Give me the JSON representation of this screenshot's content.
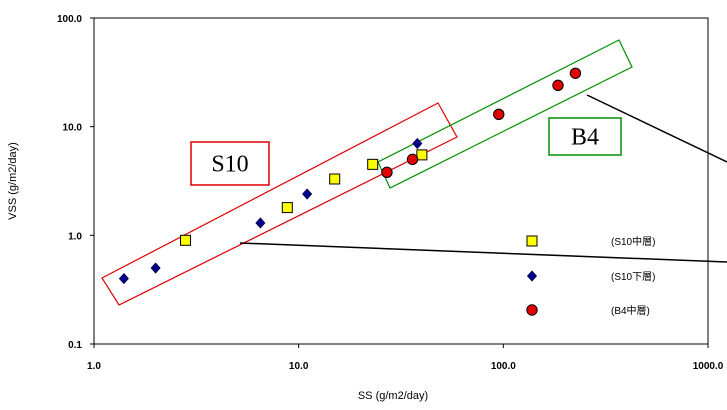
{
  "chart_data": {
    "type": "scatter",
    "xlabel": "SS (g/m2/day)",
    "ylabel": "VSS (g/m2/day)",
    "xscale": "log",
    "yscale": "log",
    "xlim": [
      1.0,
      1000.0
    ],
    "ylim": [
      0.1,
      100.0
    ],
    "x_tick_labels": [
      "1.0",
      "10.0",
      "100.0",
      "1000.0"
    ],
    "y_tick_labels": [
      "0.1",
      "1.0",
      "10.0",
      "100.0"
    ],
    "grid": false,
    "legend_position": "bottom-right",
    "series": [
      {
        "name": "(S10中層)",
        "marker": "square",
        "color": "#ffff00",
        "points": [
          [
            2.8,
            0.9
          ],
          [
            8.8,
            1.8
          ],
          [
            15.0,
            3.3
          ],
          [
            23.0,
            4.5
          ],
          [
            40.0,
            5.5
          ]
        ]
      },
      {
        "name": "(S10下層)",
        "marker": "diamond",
        "color": "#00008b",
        "points": [
          [
            1.4,
            0.4
          ],
          [
            2.0,
            0.5
          ],
          [
            6.5,
            1.3
          ],
          [
            11.0,
            2.4
          ],
          [
            38.0,
            7.0
          ]
        ]
      },
      {
        "name": "(B4中層)",
        "marker": "circle",
        "color": "#e00000",
        "points": [
          [
            27.0,
            3.8
          ],
          [
            36.0,
            5.0
          ],
          [
            95.0,
            13.0
          ],
          [
            185.0,
            24.0
          ],
          [
            225.0,
            31.0
          ]
        ]
      }
    ],
    "annotations": [
      {
        "text": "S10",
        "color": "#e00000"
      },
      {
        "text": "B4",
        "color": "#009000"
      }
    ]
  }
}
